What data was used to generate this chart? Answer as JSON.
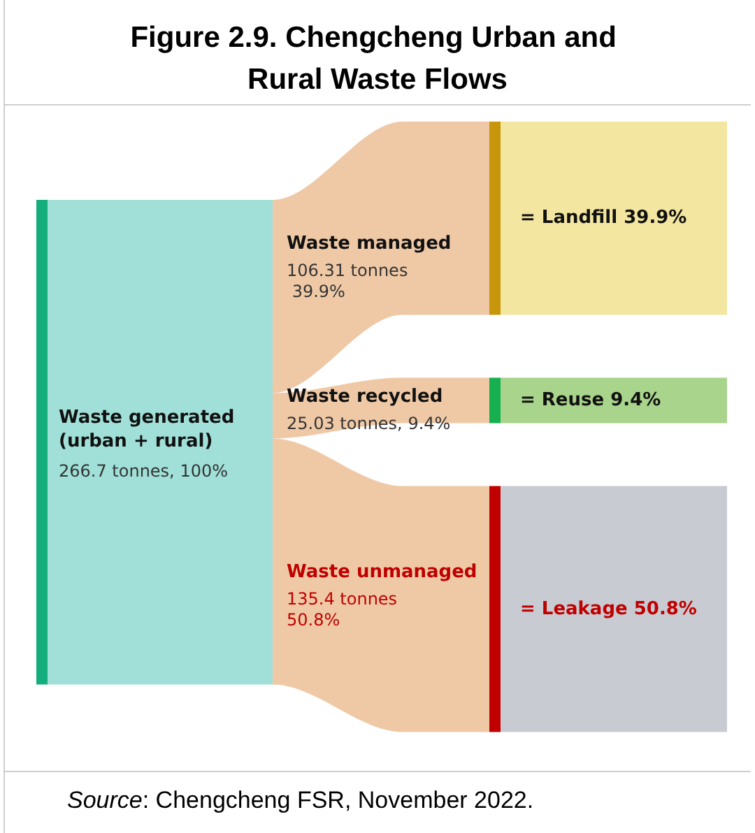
{
  "chart_data": {
    "type": "other",
    "title": "Figure 2.9. Chengcheng Urban and Rural Waste Flows",
    "categories": [
      "Waste managed",
      "Waste recycled",
      "Waste unmanaged"
    ],
    "values": [
      106.31,
      25.03,
      135.4
    ],
    "value_labels": [
      "106.31 tonnes\n 39.9%",
      "25.03 tonnes, 9.4%",
      "135.4 tonnes\n50.8%"
    ],
    "colors": [
      "#efc9a6",
      "#efc9a6",
      "#efc9a6"
    ],
    "annotations": [
      "Waste generated\n(urban + rural)",
      "266.7 tonnes, 100%",
      {
        "text": "= Landfill 39.9%",
        "x": "Waste managed"
      },
      {
        "text": "= Reuse 9.4%",
        "x": "Waste recycled"
      },
      {
        "text": "= Leakage 50.8%",
        "x": "Waste unmanaged"
      },
      "Source: Chengcheng FSR, November 2022."
    ]
  }
}
